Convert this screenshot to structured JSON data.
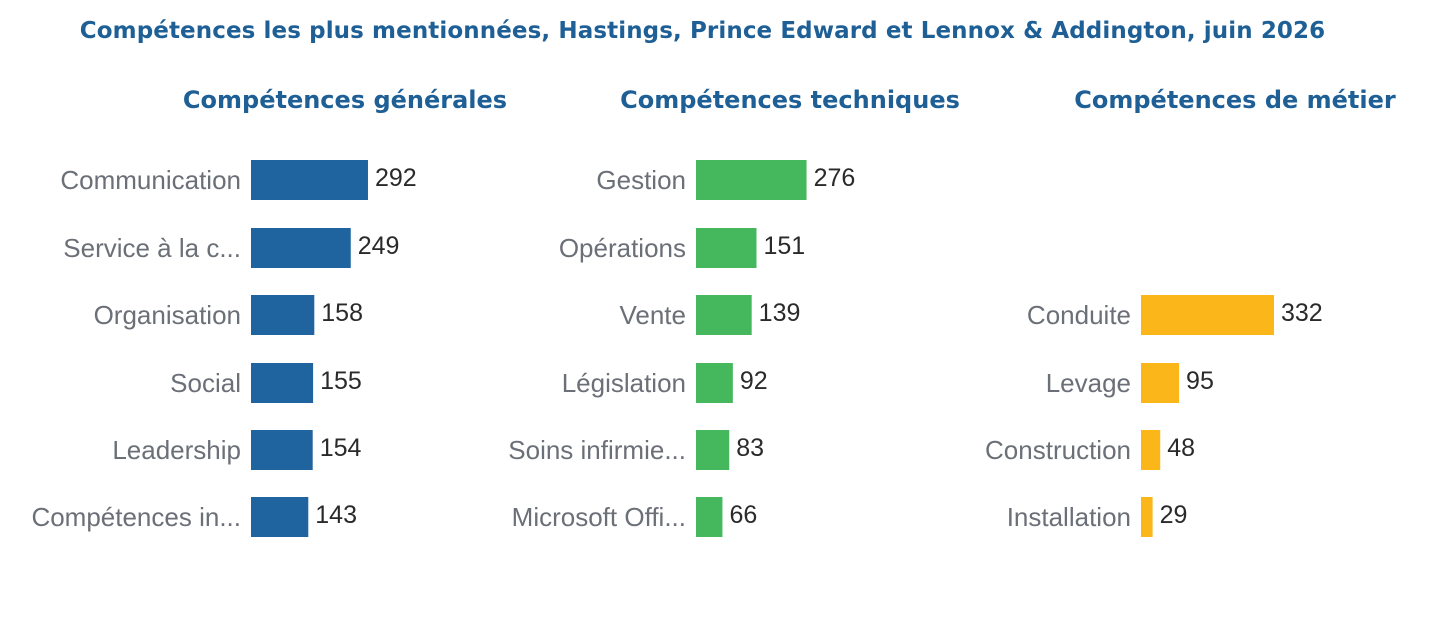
{
  "title": "Compétences les plus mentionnées, Hastings, Prince Edward et Lennox & Addington, juin 2026",
  "chart_data": [
    {
      "type": "bar",
      "orientation": "horizontal",
      "title": "Compétences générales",
      "color": "#1f639f",
      "categories": [
        "Communication",
        "Service à la c...",
        "Organisation",
        "Social",
        "Leadership",
        "Compétences in..."
      ],
      "values": [
        292,
        249,
        158,
        155,
        154,
        143
      ],
      "xlim": [
        0,
        332
      ]
    },
    {
      "type": "bar",
      "orientation": "horizontal",
      "title": "Compétences techniques",
      "color": "#45b85d",
      "categories": [
        "Gestion",
        "Opérations",
        "Vente",
        "Législation",
        "Soins infirmie...",
        "Microsoft Offi..."
      ],
      "values": [
        276,
        151,
        139,
        92,
        83,
        66
      ],
      "xlim": [
        0,
        332
      ]
    },
    {
      "type": "bar",
      "orientation": "horizontal",
      "title": "Compétences de métier",
      "color": "#fbb61a",
      "categories": [
        "Conduite",
        "Levage",
        "Construction",
        "Installation"
      ],
      "values": [
        332,
        95,
        48,
        29
      ],
      "xlim": [
        0,
        332
      ]
    }
  ]
}
